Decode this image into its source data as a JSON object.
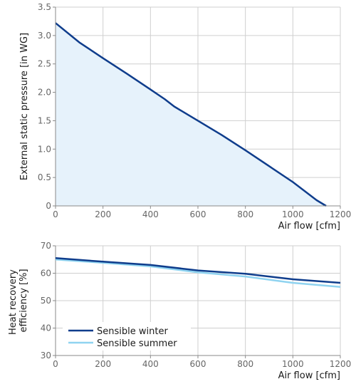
{
  "chart_data": [
    {
      "type": "area",
      "xlabel": "Air flow [cfm]",
      "ylabel": "External static pressure [in WG]",
      "xlim": [
        0,
        1200
      ],
      "ylim": [
        0,
        3.5
      ],
      "x_ticks": [
        "0",
        "200",
        "400",
        "600",
        "800",
        "1000",
        "1200"
      ],
      "y_ticks": [
        "0",
        "0.5",
        "1.0",
        "1.5",
        "2.0",
        "2.5",
        "3.0",
        "3.5"
      ],
      "grid": true,
      "series": [
        {
          "color": "#0f3d8c",
          "fill": "#e6f2fb",
          "x": [
            0,
            100,
            200,
            300,
            400,
            460,
            500,
            600,
            700,
            800,
            900,
            1000,
            1100,
            1140
          ],
          "y": [
            3.22,
            2.88,
            2.6,
            2.33,
            2.05,
            1.88,
            1.75,
            1.5,
            1.25,
            0.98,
            0.7,
            0.42,
            0.1,
            0.0
          ]
        }
      ]
    },
    {
      "type": "line",
      "xlabel": "Air flow [cfm]",
      "ylabel": "Heat recovery efficiency [%]",
      "ylabel_lines": [
        "Heat recovery",
        "efficiency [%]"
      ],
      "xlim": [
        0,
        1200
      ],
      "ylim": [
        30,
        70
      ],
      "x_ticks": [
        "0",
        "200",
        "400",
        "600",
        "800",
        "1000",
        "1200"
      ],
      "y_ticks": [
        "30",
        "40",
        "50",
        "60",
        "70"
      ],
      "grid": true,
      "legend_position": "bottom-left",
      "series": [
        {
          "name": "Sensible winter",
          "color": "#0f3d8c",
          "x": [
            0,
            200,
            400,
            600,
            800,
            1000,
            1200
          ],
          "y": [
            65.5,
            64.2,
            63.0,
            61.0,
            59.8,
            57.8,
            56.5
          ]
        },
        {
          "name": "Sensible summer",
          "color": "#8fd3f0",
          "x": [
            0,
            200,
            400,
            600,
            800,
            1000,
            1200
          ],
          "y": [
            65.0,
            63.8,
            62.5,
            60.3,
            58.8,
            56.5,
            55.0
          ]
        }
      ]
    }
  ]
}
